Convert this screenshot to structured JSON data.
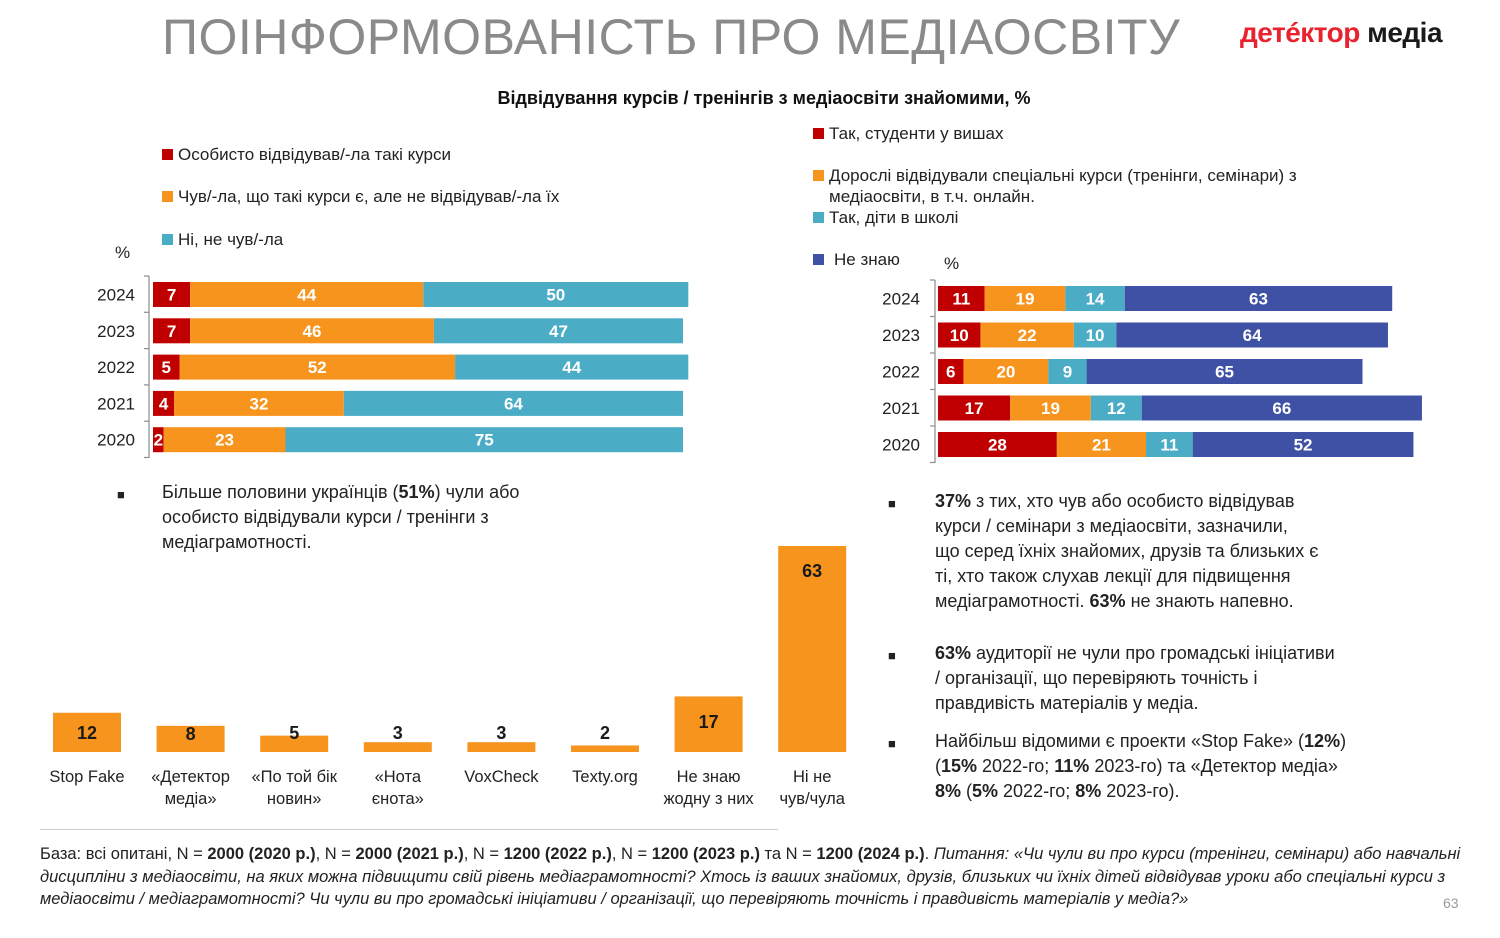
{
  "header": {
    "title": "ПОІНФОРМОВАНІСТЬ ПРО МЕДІАОСВІТУ",
    "logo_part1": "детéктор",
    "logo_part2": "медіа",
    "subtitle": "Відвідування курсів / тренінгів з медіаосвіти знайомими, %"
  },
  "colors": {
    "red": "#c00000",
    "orange": "#f7941d",
    "teal": "#4bacc6",
    "navy": "#3f51a5",
    "bar_label_dark": "#1a1a1a",
    "bar_label_light": "#ffffff"
  },
  "chart_data": [
    {
      "id": "personal-attendance",
      "type": "bar",
      "orientation": "horizontal",
      "stacked": true,
      "title": "",
      "unit_label": "%",
      "categories": [
        "2024",
        "2023",
        "2022",
        "2021",
        "2020"
      ],
      "series": [
        {
          "name": "Особисто відвідував/-ла такі курси",
          "color": "#c00000",
          "values": [
            7,
            7,
            5,
            4,
            2
          ]
        },
        {
          "name": "Чув/-ла, що такі курси є, але не відвідував/-ла їх",
          "color": "#f7941d",
          "values": [
            44,
            46,
            52,
            32,
            23
          ]
        },
        {
          "name": "Ні, не чув/-ла",
          "color": "#4bacc6",
          "values": [
            50,
            47,
            44,
            64,
            75
          ]
        }
      ],
      "xlim": [
        0,
        101
      ],
      "legend": "top-left",
      "grid": false
    },
    {
      "id": "acquaintances-attendance",
      "type": "bar",
      "orientation": "horizontal",
      "stacked": true,
      "title": "",
      "unit_label": "%",
      "categories": [
        "2024",
        "2023",
        "2022",
        "2021",
        "2020"
      ],
      "series": [
        {
          "name": "Так, студенти у вишах",
          "color": "#c00000",
          "values": [
            11,
            10,
            6,
            17,
            28
          ]
        },
        {
          "name": "Дорослі відвідували спеціальні курси (тренінги, семінари) з медіаосвіти, в т.ч. онлайн.",
          "color": "#f7941d",
          "values": [
            19,
            22,
            20,
            19,
            21
          ]
        },
        {
          "name": "Так, діти в школі",
          "color": "#4bacc6",
          "values": [
            14,
            10,
            9,
            12,
            11
          ]
        },
        {
          "name": "Не знаю",
          "color": "#3f51a5",
          "values": [
            63,
            64,
            65,
            66,
            52
          ]
        }
      ],
      "xlim": [
        0,
        125
      ],
      "legend": "top-left",
      "grid": false
    },
    {
      "id": "fact-check-awareness",
      "type": "bar",
      "orientation": "vertical",
      "title": "",
      "categories": [
        "Stop Fake",
        "«Детектор медіа»",
        "«По той бік новин»",
        "«Нота єнота»",
        "VoxCheck",
        "Texty.org",
        "Не знаю жодну з них",
        "Ні не чув/чула"
      ],
      "category_lines": [
        [
          "Stop Fake"
        ],
        [
          "«Детектор",
          "медіа»"
        ],
        [
          "«По той бік",
          "новин»"
        ],
        [
          "«Нота",
          "єнота»"
        ],
        [
          "VoxCheck"
        ],
        [
          "Texty.org"
        ],
        [
          "Не знаю",
          "жодну з них"
        ],
        [
          "Ні не",
          "чув/чула"
        ]
      ],
      "values": [
        12,
        8,
        5,
        3,
        3,
        2,
        17,
        63
      ],
      "color": "#f7941d",
      "ylim": [
        0,
        63
      ],
      "xlabel": "",
      "ylabel": "",
      "grid": false
    }
  ],
  "legend_left": [
    "Особисто відвідував/-ла такі курси",
    "Чув/-ла, що такі курси є, але не відвідував/-ла їх",
    "Ні, не чув/-ла"
  ],
  "legend_right": [
    "Так, студенти у вишах",
    "Дорослі відвідували спеціальні курси (тренінги, семінари) з",
    "медіаосвіти, в т.ч. онлайн.",
    "Так, діти в школі",
    "Не знаю"
  ],
  "percent_label": "%",
  "bullet_mark": "■",
  "bullets": {
    "left": {
      "pre": "Більше половини українців (",
      "bold": "51%",
      "post_line1": ") чули або",
      "line2": "особисто відвідували курси / тренінги з",
      "line3": "медіаграмотності."
    },
    "right1": {
      "bold1": "37%",
      "line1_rest": " з тих, хто чув або особисто відвідував",
      "line2": "курси / семінари з медіаосвіти, зазначили,",
      "line3": "що серед їхніх знайомих, друзів та близьких є",
      "line4": "ті, хто також слухав лекції для підвищення",
      "line5_pre": "медіаграмотності. ",
      "bold2": "63%",
      "line5_post": " не знають напевно."
    },
    "right2": {
      "bold1": "63%",
      "line1_rest": " аудиторії не чули про громадські ініціативи",
      "line2": "/ організації, що перевіряють точність і",
      "line3": "правдивість матеріалів у медіа."
    },
    "right3": {
      "line1_pre": "Найбільш відомими є проекти «Stop Fake» (",
      "b1": "12%",
      "line1_post": ")",
      "l2_a": "(",
      "b2": "15%",
      "l2_b": " 2022-го; ",
      "b3": "11%",
      "l2_c": " 2023-го) та «Детектор медіа»",
      "b4": "8%",
      "l3_a": " (",
      "b5": "5%",
      "l3_b": " 2022-го; ",
      "b6": "8%",
      "l3_c": " 2023-го)."
    }
  },
  "footnote": {
    "base_label": "База: всі опитані, N = ",
    "n2020": "2000 (2020 р.)",
    "sep1": ", N = ",
    "n2021": "2000 (2021 р.)",
    "sep2": ", N = ",
    "n2022": "1200 (2022 р.)",
    "sep3": ", N = ",
    "n2023": "1200 (2023 р.)",
    "sep4": " та N = ",
    "n2024": "1200 (2024 р.)",
    "sep5": ". ",
    "question": "Питання: «Чи чули ви про курси (тренінги, семінари) або навчальні дисципліни з медіаосвіти, на яких можна підвищити свій рівень медіаграмотності? Хтось із ваших знайомих, друзів, близьких чи їхніх дітей відвідував уроки або спеціальні курси з медіаосвіти / медіаграмотності?  Чи чули ви про громадські ініціативи / організації, що перевіряють точність і правдивість матеріалів у медіа?»"
  },
  "page_number": "63"
}
